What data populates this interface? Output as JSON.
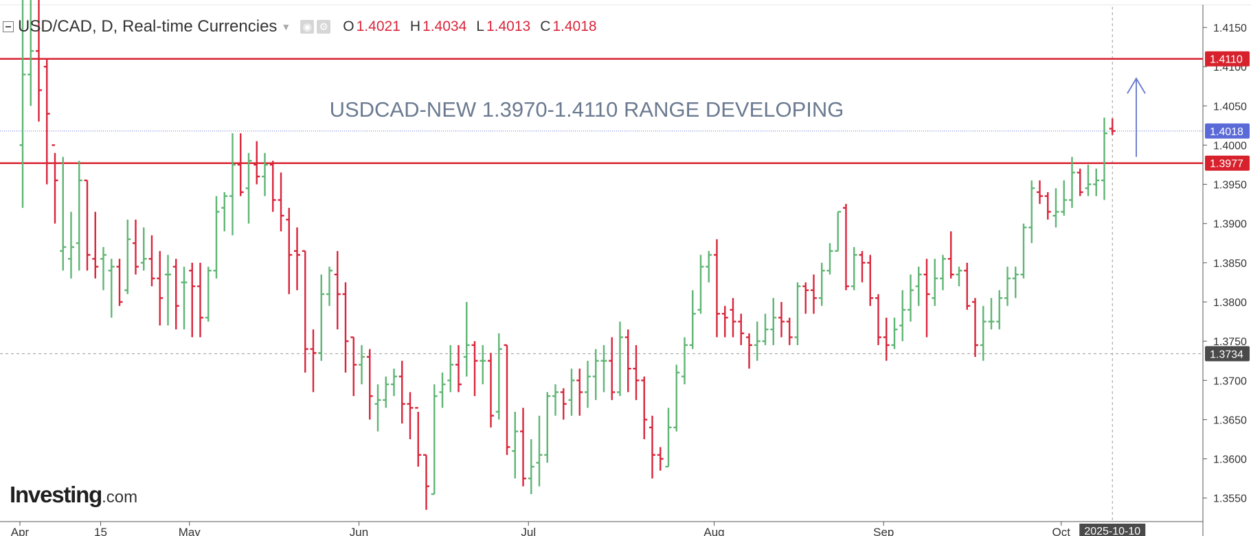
{
  "header": {
    "symbol": "USD/CAD, D, Real-time Currencies",
    "o_label": "O",
    "o_value": "1.4021",
    "h_label": "H",
    "h_value": "1.4034",
    "l_label": "L",
    "l_value": "1.4013",
    "c_label": "C",
    "c_value": "1.4018"
  },
  "brand": {
    "name": "Investing",
    "suffix": ".com"
  },
  "colors": {
    "up": "#5fb574",
    "down": "#d9243a",
    "level_line": "#d7222d",
    "last_price": "#5a6ad6",
    "annotation": "#6b7a90"
  },
  "chart_data": {
    "type": "ohlc",
    "title": "USD/CAD, D, Real-time Currencies",
    "annotation": "USDCAD-NEW 1.3970-1.4110 RANGE DEVELOPING",
    "ylim": [
      1.352,
      1.4185
    ],
    "y_ticks": [
      1.415,
      1.41,
      1.405,
      1.4,
      1.395,
      1.39,
      1.385,
      1.38,
      1.375,
      1.37,
      1.365,
      1.36,
      1.355
    ],
    "y_tick_labels": [
      "1.4150",
      "1.4100",
      "1.4050",
      "1.4000",
      "1.3950",
      "1.3900",
      "1.3850",
      "1.3800",
      "1.3750",
      "1.3700",
      "1.3650",
      "1.3600",
      "1.3550"
    ],
    "x_labels": [
      {
        "label": "Apr",
        "bar": 0
      },
      {
        "label": "15",
        "bar": 10
      },
      {
        "label": "May",
        "bar": 21
      },
      {
        "label": "Jun",
        "bar": 42
      },
      {
        "label": "Jul",
        "bar": 63
      },
      {
        "label": "Aug",
        "bar": 86
      },
      {
        "label": "Sep",
        "bar": 107
      },
      {
        "label": "Oct",
        "bar": 129
      }
    ],
    "crosshair_date": "2025-10-10",
    "horizontal_levels": [
      {
        "value": 1.411,
        "label": "1.4110",
        "kind": "resistance"
      },
      {
        "value": 1.3977,
        "label": "1.3977",
        "kind": "support"
      }
    ],
    "last_price": {
      "value": 1.4018,
      "label": "1.4018"
    },
    "crosshair_price": {
      "value": 1.3734,
      "label": "1.3734"
    },
    "arrow": {
      "direction": "up",
      "from": 1.3985,
      "to": 1.4085
    },
    "bars": [
      [
        1.4,
        1.42,
        1.392,
        1.409
      ],
      [
        1.409,
        1.42,
        1.405,
        1.412
      ],
      [
        1.412,
        1.42,
        1.403,
        1.407
      ],
      [
        1.41,
        1.411,
        1.395,
        1.404
      ],
      [
        1.4,
        1.399,
        1.39,
        1.3955
      ],
      [
        1.3865,
        1.3985,
        1.384,
        1.387
      ],
      [
        1.3855,
        1.3915,
        1.383,
        1.387
      ],
      [
        1.3875,
        1.398,
        1.384,
        1.3955
      ],
      [
        1.3955,
        1.3955,
        1.384,
        1.386
      ],
      [
        1.3855,
        1.3915,
        1.383,
        1.3845
      ],
      [
        1.3855,
        1.387,
        1.3815,
        1.386
      ],
      [
        1.384,
        1.3855,
        1.378,
        1.3845
      ],
      [
        1.3845,
        1.3855,
        1.3795,
        1.38
      ],
      [
        1.3815,
        1.3905,
        1.381,
        1.388
      ],
      [
        1.3875,
        1.3905,
        1.3835,
        1.3845
      ],
      [
        1.385,
        1.3895,
        1.384,
        1.3855
      ],
      [
        1.3855,
        1.3885,
        1.382,
        1.383
      ],
      [
        1.383,
        1.3865,
        1.377,
        1.3805
      ],
      [
        1.3835,
        1.386,
        1.377,
        1.3835
      ],
      [
        1.3845,
        1.3855,
        1.3765,
        1.3795
      ],
      [
        1.3825,
        1.3845,
        1.3765,
        1.3825
      ],
      [
        1.384,
        1.385,
        1.3755,
        1.382
      ],
      [
        1.382,
        1.385,
        1.3755,
        1.378
      ],
      [
        1.378,
        1.3845,
        1.3775,
        1.384
      ],
      [
        1.384,
        1.3935,
        1.383,
        1.3915
      ],
      [
        1.392,
        1.394,
        1.389,
        1.3935
      ],
      [
        1.3935,
        1.4015,
        1.3885,
        1.3975
      ],
      [
        1.3975,
        1.4015,
        1.3935,
        1.394
      ],
      [
        1.3945,
        1.399,
        1.39,
        1.398
      ],
      [
        1.3975,
        1.4005,
        1.395,
        1.396
      ],
      [
        1.396,
        1.399,
        1.3935,
        1.3975
      ],
      [
        1.3975,
        1.398,
        1.3915,
        1.393
      ],
      [
        1.393,
        1.3965,
        1.389,
        1.391
      ],
      [
        1.3905,
        1.392,
        1.381,
        1.386
      ],
      [
        1.3865,
        1.3895,
        1.3815,
        1.386
      ],
      [
        1.3865,
        1.3865,
        1.371,
        1.374
      ],
      [
        1.374,
        1.3765,
        1.3685,
        1.3735
      ],
      [
        1.3735,
        1.3835,
        1.3725,
        1.381
      ],
      [
        1.381,
        1.3845,
        1.3795,
        1.384
      ],
      [
        1.3835,
        1.3865,
        1.3765,
        1.381
      ],
      [
        1.381,
        1.3825,
        1.371,
        1.375
      ],
      [
        1.3755,
        1.3755,
        1.368,
        1.372
      ],
      [
        1.372,
        1.3745,
        1.3695,
        1.373
      ],
      [
        1.373,
        1.374,
        1.365,
        1.368
      ],
      [
        1.367,
        1.3695,
        1.3635,
        1.3675
      ],
      [
        1.3675,
        1.3705,
        1.3665,
        1.3695
      ],
      [
        1.3695,
        1.3715,
        1.368,
        1.3705
      ],
      [
        1.3705,
        1.3725,
        1.3645,
        1.367
      ],
      [
        1.367,
        1.3685,
        1.3625,
        1.3665
      ],
      [
        1.3665,
        1.366,
        1.359,
        1.3605
      ],
      [
        1.3605,
        1.3605,
        1.3535,
        1.3565
      ],
      [
        1.3555,
        1.3695,
        1.3555,
        1.368
      ],
      [
        1.3685,
        1.371,
        1.3665,
        1.3695
      ],
      [
        1.37,
        1.3745,
        1.3685,
        1.372
      ],
      [
        1.372,
        1.3745,
        1.3685,
        1.3695
      ],
      [
        1.373,
        1.38,
        1.3705,
        1.3745
      ],
      [
        1.3745,
        1.375,
        1.368,
        1.3725
      ],
      [
        1.3725,
        1.3745,
        1.3695,
        1.3725
      ],
      [
        1.3725,
        1.3735,
        1.364,
        1.3655
      ],
      [
        1.366,
        1.376,
        1.365,
        1.374
      ],
      [
        1.3745,
        1.3745,
        1.3605,
        1.3615
      ],
      [
        1.361,
        1.366,
        1.3575,
        1.3635
      ],
      [
        1.3635,
        1.3665,
        1.3565,
        1.3575
      ],
      [
        1.3575,
        1.3625,
        1.3555,
        1.359
      ],
      [
        1.3595,
        1.3655,
        1.3565,
        1.3605
      ],
      [
        1.3605,
        1.3685,
        1.3595,
        1.368
      ],
      [
        1.368,
        1.3695,
        1.3655,
        1.3685
      ],
      [
        1.3685,
        1.369,
        1.365,
        1.367
      ],
      [
        1.3675,
        1.3715,
        1.3655,
        1.37
      ],
      [
        1.37,
        1.3715,
        1.3655,
        1.3685
      ],
      [
        1.3685,
        1.3725,
        1.3665,
        1.3705
      ],
      [
        1.3705,
        1.374,
        1.3675,
        1.3725
      ],
      [
        1.3725,
        1.3745,
        1.3685,
        1.3725
      ],
      [
        1.3725,
        1.3755,
        1.3675,
        1.3685
      ],
      [
        1.3685,
        1.3775,
        1.368,
        1.3755
      ],
      [
        1.3755,
        1.3765,
        1.3685,
        1.3715
      ],
      [
        1.3715,
        1.3745,
        1.3675,
        1.37
      ],
      [
        1.37,
        1.3705,
        1.3625,
        1.365
      ],
      [
        1.364,
        1.3655,
        1.3575,
        1.3605
      ],
      [
        1.3605,
        1.3615,
        1.3585,
        1.36
      ],
      [
        1.359,
        1.3665,
        1.359,
        1.364
      ],
      [
        1.364,
        1.372,
        1.3635,
        1.371
      ],
      [
        1.3705,
        1.3755,
        1.3695,
        1.3745
      ],
      [
        1.3745,
        1.3815,
        1.374,
        1.3785
      ],
      [
        1.379,
        1.386,
        1.3785,
        1.3845
      ],
      [
        1.3845,
        1.3865,
        1.3825,
        1.386
      ],
      [
        1.386,
        1.388,
        1.3755,
        1.3785
      ],
      [
        1.3785,
        1.3795,
        1.3755,
        1.378
      ],
      [
        1.379,
        1.3805,
        1.3755,
        1.3775
      ],
      [
        1.3775,
        1.3785,
        1.3745,
        1.376
      ],
      [
        1.3755,
        1.376,
        1.3715,
        1.3745
      ],
      [
        1.3745,
        1.3775,
        1.3725,
        1.375
      ],
      [
        1.375,
        1.3785,
        1.3745,
        1.3765
      ],
      [
        1.3765,
        1.3805,
        1.3745,
        1.378
      ],
      [
        1.378,
        1.38,
        1.3755,
        1.3775
      ],
      [
        1.3775,
        1.378,
        1.3745,
        1.3755
      ],
      [
        1.3755,
        1.3825,
        1.3745,
        1.382
      ],
      [
        1.382,
        1.3825,
        1.3785,
        1.3815
      ],
      [
        1.3815,
        1.3835,
        1.3785,
        1.3805
      ],
      [
        1.3805,
        1.385,
        1.3795,
        1.384
      ],
      [
        1.384,
        1.3875,
        1.3835,
        1.3865
      ],
      [
        1.3865,
        1.3915,
        1.3865,
        1.3915
      ],
      [
        1.392,
        1.3925,
        1.3815,
        1.382
      ],
      [
        1.382,
        1.387,
        1.3815,
        1.386
      ],
      [
        1.386,
        1.3865,
        1.3825,
        1.385
      ],
      [
        1.385,
        1.386,
        1.3795,
        1.3805
      ],
      [
        1.3805,
        1.381,
        1.3745,
        1.3755
      ],
      [
        1.3755,
        1.378,
        1.3725,
        1.3745
      ],
      [
        1.3745,
        1.378,
        1.374,
        1.3765
      ],
      [
        1.377,
        1.3815,
        1.375,
        1.379
      ],
      [
        1.379,
        1.3835,
        1.3775,
        1.3815
      ],
      [
        1.382,
        1.3845,
        1.3795,
        1.3835
      ],
      [
        1.3835,
        1.3855,
        1.3755,
        1.381
      ],
      [
        1.3805,
        1.3855,
        1.3795,
        1.383
      ],
      [
        1.383,
        1.386,
        1.3815,
        1.3855
      ],
      [
        1.3855,
        1.389,
        1.383,
        1.3835
      ],
      [
        1.3835,
        1.3845,
        1.382,
        1.384
      ],
      [
        1.384,
        1.385,
        1.379,
        1.3795
      ],
      [
        1.38,
        1.3805,
        1.373,
        1.3745
      ],
      [
        1.3745,
        1.3795,
        1.3725,
        1.3775
      ],
      [
        1.3775,
        1.3805,
        1.3765,
        1.3775
      ],
      [
        1.3775,
        1.3815,
        1.3765,
        1.3805
      ],
      [
        1.3805,
        1.3845,
        1.3795,
        1.383
      ],
      [
        1.383,
        1.3845,
        1.3805,
        1.3835
      ],
      [
        1.3835,
        1.39,
        1.383,
        1.3895
      ],
      [
        1.3895,
        1.3955,
        1.3875,
        1.3945
      ],
      [
        1.394,
        1.3955,
        1.3925,
        1.3935
      ],
      [
        1.3935,
        1.394,
        1.3905,
        1.3915
      ],
      [
        1.391,
        1.3945,
        1.3895,
        1.3915
      ],
      [
        1.3915,
        1.3955,
        1.391,
        1.393
      ],
      [
        1.393,
        1.3985,
        1.392,
        1.3965
      ],
      [
        1.3965,
        1.397,
        1.3935,
        1.394
      ],
      [
        1.3945,
        1.3975,
        1.3935,
        1.395
      ],
      [
        1.395,
        1.397,
        1.3935,
        1.3955
      ],
      [
        1.3955,
        1.4035,
        1.393,
        1.4015
      ],
      [
        1.4021,
        1.4034,
        1.4013,
        1.4018
      ]
    ]
  }
}
